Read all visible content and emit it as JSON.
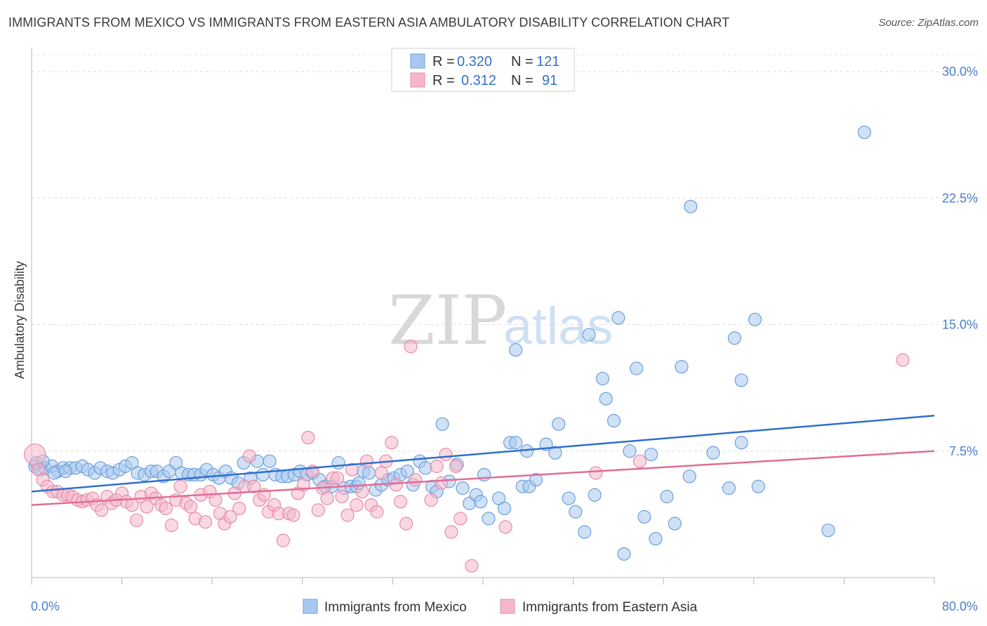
{
  "header": {
    "title": "IMMIGRANTS FROM MEXICO VS IMMIGRANTS FROM EASTERN ASIA AMBULATORY DISABILITY CORRELATION CHART",
    "source": "Source: ZipAtlas.com"
  },
  "watermark": {
    "zip": "ZIP",
    "atlas": "atlas"
  },
  "legend": {
    "rows": [
      {
        "r_label": "R =",
        "r_value": "0.320",
        "n_label": "N =",
        "n_value": "121"
      },
      {
        "r_label": "R =",
        "r_value": "0.312",
        "n_label": "N =",
        "n_value": "91"
      }
    ]
  },
  "colors": {
    "blue_fill": "#a9c8ef",
    "blue_stroke": "#6a9fdc",
    "blue_line": "#2e6fcc",
    "pink_fill": "#f4b8ca",
    "pink_stroke": "#e98aa8",
    "pink_line": "#e06d97"
  },
  "chart_data": {
    "type": "scatter",
    "title": "IMMIGRANTS FROM MEXICO VS IMMIGRANTS FROM EASTERN ASIA AMBULATORY DISABILITY CORRELATION CHART",
    "xlabel": "",
    "ylabel": "Ambulatory Disability",
    "xlim": [
      0,
      80
    ],
    "ylim": [
      0,
      31
    ],
    "x_tick_labels": [
      "0.0%",
      "80.0%"
    ],
    "y_ticks": [
      7.5,
      15.0,
      22.5,
      30.0
    ],
    "y_tick_labels": [
      "7.5%",
      "15.0%",
      "22.5%",
      "30.0%"
    ],
    "grid": true,
    "legend_position": "top-center",
    "series": [
      {
        "name": "Immigrants from Mexico",
        "color": "#6a9fdc",
        "r": 0.32,
        "n": 121,
        "trend": {
          "x": [
            0,
            80
          ],
          "y": [
            5.1,
            9.6
          ]
        },
        "points": [
          [
            0.3,
            6.6
          ],
          [
            0.8,
            6.4
          ],
          [
            1.2,
            6.5
          ],
          [
            1.8,
            6.6
          ],
          [
            2.3,
            6.3
          ],
          [
            2.8,
            6.5
          ],
          [
            3.4,
            6.5
          ],
          [
            3.9,
            6.5
          ],
          [
            4.5,
            6.6
          ],
          [
            5.0,
            6.4
          ],
          [
            5.6,
            6.2
          ],
          [
            6.1,
            6.5
          ],
          [
            6.7,
            6.3
          ],
          [
            7.2,
            6.2
          ],
          [
            7.8,
            6.4
          ],
          [
            8.3,
            6.6
          ],
          [
            8.9,
            6.8
          ],
          [
            9.4,
            6.2
          ],
          [
            10.0,
            6.1
          ],
          [
            10.6,
            6.3
          ],
          [
            11.1,
            6.3
          ],
          [
            11.7,
            6.0
          ],
          [
            12.2,
            6.3
          ],
          [
            12.8,
            6.8
          ],
          [
            13.3,
            6.2
          ],
          [
            13.9,
            6.1
          ],
          [
            14.4,
            6.1
          ],
          [
            15.0,
            6.1
          ],
          [
            15.5,
            6.4
          ],
          [
            16.1,
            6.1
          ],
          [
            16.6,
            5.9
          ],
          [
            17.2,
            6.3
          ],
          [
            17.7,
            5.9
          ],
          [
            18.3,
            5.6
          ],
          [
            18.8,
            6.8
          ],
          [
            19.4,
            5.9
          ],
          [
            20.0,
            6.9
          ],
          [
            20.5,
            6.1
          ],
          [
            21.1,
            6.9
          ],
          [
            21.6,
            6.1
          ],
          [
            22.2,
            6.0
          ],
          [
            22.7,
            6.0
          ],
          [
            23.3,
            6.1
          ],
          [
            23.8,
            6.3
          ],
          [
            24.4,
            6.1
          ],
          [
            24.9,
            6.2
          ],
          [
            25.5,
            5.8
          ],
          [
            26.0,
            5.4
          ],
          [
            26.6,
            5.4
          ],
          [
            27.2,
            6.8
          ],
          [
            27.7,
            5.3
          ],
          [
            28.3,
            5.4
          ],
          [
            28.8,
            5.4
          ],
          [
            29.4,
            6.3
          ],
          [
            29.9,
            6.2
          ],
          [
            30.5,
            5.2
          ],
          [
            31.0,
            5.5
          ],
          [
            31.6,
            5.8
          ],
          [
            32.1,
            5.9
          ],
          [
            32.7,
            6.1
          ],
          [
            33.3,
            6.3
          ],
          [
            33.8,
            5.5
          ],
          [
            34.4,
            6.9
          ],
          [
            34.9,
            6.5
          ],
          [
            35.5,
            5.4
          ],
          [
            35.9,
            5.1
          ],
          [
            36.4,
            9.1
          ],
          [
            37.0,
            5.7
          ],
          [
            37.7,
            6.7
          ],
          [
            38.2,
            5.3
          ],
          [
            38.8,
            4.4
          ],
          [
            39.4,
            4.9
          ],
          [
            39.8,
            4.5
          ],
          [
            40.1,
            6.1
          ],
          [
            40.5,
            3.5
          ],
          [
            41.4,
            4.7
          ],
          [
            41.9,
            4.1
          ],
          [
            42.4,
            8.0
          ],
          [
            42.9,
            8.0
          ],
          [
            42.9,
            13.5
          ],
          [
            43.5,
            5.4
          ],
          [
            44.1,
            5.4
          ],
          [
            43.9,
            7.5
          ],
          [
            44.7,
            5.8
          ],
          [
            45.6,
            7.9
          ],
          [
            46.4,
            7.4
          ],
          [
            46.7,
            9.1
          ],
          [
            47.6,
            4.7
          ],
          [
            48.2,
            3.9
          ],
          [
            49.0,
            2.7
          ],
          [
            49.4,
            14.4
          ],
          [
            49.9,
            4.9
          ],
          [
            50.6,
            11.8
          ],
          [
            50.9,
            10.6
          ],
          [
            51.6,
            9.3
          ],
          [
            52.0,
            15.4
          ],
          [
            52.5,
            1.4
          ],
          [
            53.0,
            7.5
          ],
          [
            53.6,
            12.4
          ],
          [
            54.3,
            3.6
          ],
          [
            54.9,
            7.3
          ],
          [
            55.3,
            2.3
          ],
          [
            56.3,
            4.8
          ],
          [
            57.0,
            3.2
          ],
          [
            57.6,
            12.5
          ],
          [
            58.3,
            6.0
          ],
          [
            58.4,
            22.0
          ],
          [
            60.4,
            7.4
          ],
          [
            61.8,
            5.3
          ],
          [
            62.9,
            8.0
          ],
          [
            62.9,
            11.7
          ],
          [
            62.3,
            14.2
          ],
          [
            64.1,
            15.3
          ],
          [
            64.4,
            5.4
          ],
          [
            70.6,
            2.8
          ],
          [
            73.8,
            26.4
          ],
          [
            0.4,
            6.8
          ],
          [
            1.0,
            6.9
          ],
          [
            2.0,
            6.2
          ],
          [
            3.0,
            6.3
          ],
          [
            29.0,
            5.6
          ]
        ]
      },
      {
        "name": "Immigrants from Eastern Asia",
        "color": "#e98aa8",
        "r": 0.312,
        "n": 91,
        "trend": {
          "x": [
            0,
            80
          ],
          "y": [
            4.3,
            7.5
          ]
        },
        "points": [
          [
            0.3,
            7.3
          ],
          [
            0.6,
            6.4
          ],
          [
            1.0,
            5.8
          ],
          [
            1.4,
            5.4
          ],
          [
            1.9,
            5.1
          ],
          [
            2.3,
            5.1
          ],
          [
            2.8,
            4.9
          ],
          [
            3.2,
            4.9
          ],
          [
            3.6,
            4.8
          ],
          [
            4.1,
            4.6
          ],
          [
            4.5,
            4.5
          ],
          [
            4.9,
            4.6
          ],
          [
            5.4,
            4.7
          ],
          [
            5.8,
            4.3
          ],
          [
            6.2,
            4.0
          ],
          [
            6.7,
            4.8
          ],
          [
            7.1,
            4.4
          ],
          [
            7.5,
            4.6
          ],
          [
            8.0,
            5.0
          ],
          [
            8.4,
            4.5
          ],
          [
            8.9,
            4.3
          ],
          [
            9.3,
            3.4
          ],
          [
            9.7,
            4.8
          ],
          [
            10.2,
            4.2
          ],
          [
            10.6,
            5.0
          ],
          [
            11.0,
            4.7
          ],
          [
            11.5,
            4.3
          ],
          [
            11.9,
            4.1
          ],
          [
            12.4,
            3.1
          ],
          [
            12.8,
            4.6
          ],
          [
            13.2,
            5.4
          ],
          [
            13.7,
            4.4
          ],
          [
            14.1,
            4.2
          ],
          [
            14.5,
            3.5
          ],
          [
            15.0,
            4.9
          ],
          [
            15.4,
            3.3
          ],
          [
            15.8,
            5.1
          ],
          [
            16.3,
            4.6
          ],
          [
            16.7,
            3.8
          ],
          [
            17.1,
            3.2
          ],
          [
            17.6,
            3.6
          ],
          [
            18.0,
            5.0
          ],
          [
            18.4,
            4.1
          ],
          [
            18.9,
            5.4
          ],
          [
            19.3,
            7.2
          ],
          [
            19.7,
            5.4
          ],
          [
            20.2,
            4.6
          ],
          [
            20.6,
            4.9
          ],
          [
            21.0,
            3.9
          ],
          [
            21.5,
            4.3
          ],
          [
            21.9,
            3.8
          ],
          [
            22.3,
            2.2
          ],
          [
            22.8,
            3.8
          ],
          [
            23.2,
            3.7
          ],
          [
            23.6,
            5.0
          ],
          [
            24.1,
            5.5
          ],
          [
            24.5,
            8.3
          ],
          [
            24.9,
            6.3
          ],
          [
            25.4,
            4.0
          ],
          [
            25.8,
            5.3
          ],
          [
            26.2,
            4.7
          ],
          [
            26.7,
            5.9
          ],
          [
            27.1,
            5.9
          ],
          [
            27.5,
            4.8
          ],
          [
            28.0,
            3.7
          ],
          [
            28.4,
            6.4
          ],
          [
            28.8,
            4.3
          ],
          [
            29.3,
            5.1
          ],
          [
            29.7,
            6.9
          ],
          [
            30.1,
            4.3
          ],
          [
            30.6,
            3.9
          ],
          [
            31.0,
            6.2
          ],
          [
            31.4,
            6.9
          ],
          [
            31.9,
            8.0
          ],
          [
            32.3,
            5.5
          ],
          [
            32.7,
            4.5
          ],
          [
            33.2,
            3.2
          ],
          [
            33.6,
            13.7
          ],
          [
            34.0,
            5.8
          ],
          [
            35.4,
            4.6
          ],
          [
            35.9,
            6.6
          ],
          [
            36.3,
            5.6
          ],
          [
            36.7,
            7.3
          ],
          [
            37.2,
            2.7
          ],
          [
            37.6,
            6.6
          ],
          [
            38.0,
            3.5
          ],
          [
            39.0,
            0.7
          ],
          [
            42.0,
            3.0
          ],
          [
            50.0,
            6.2
          ],
          [
            53.9,
            6.9
          ],
          [
            77.2,
            12.9
          ]
        ]
      }
    ]
  },
  "bottom_legend": {
    "items": [
      {
        "label": "Immigrants from Mexico"
      },
      {
        "label": "Immigrants from Eastern Asia"
      }
    ]
  }
}
